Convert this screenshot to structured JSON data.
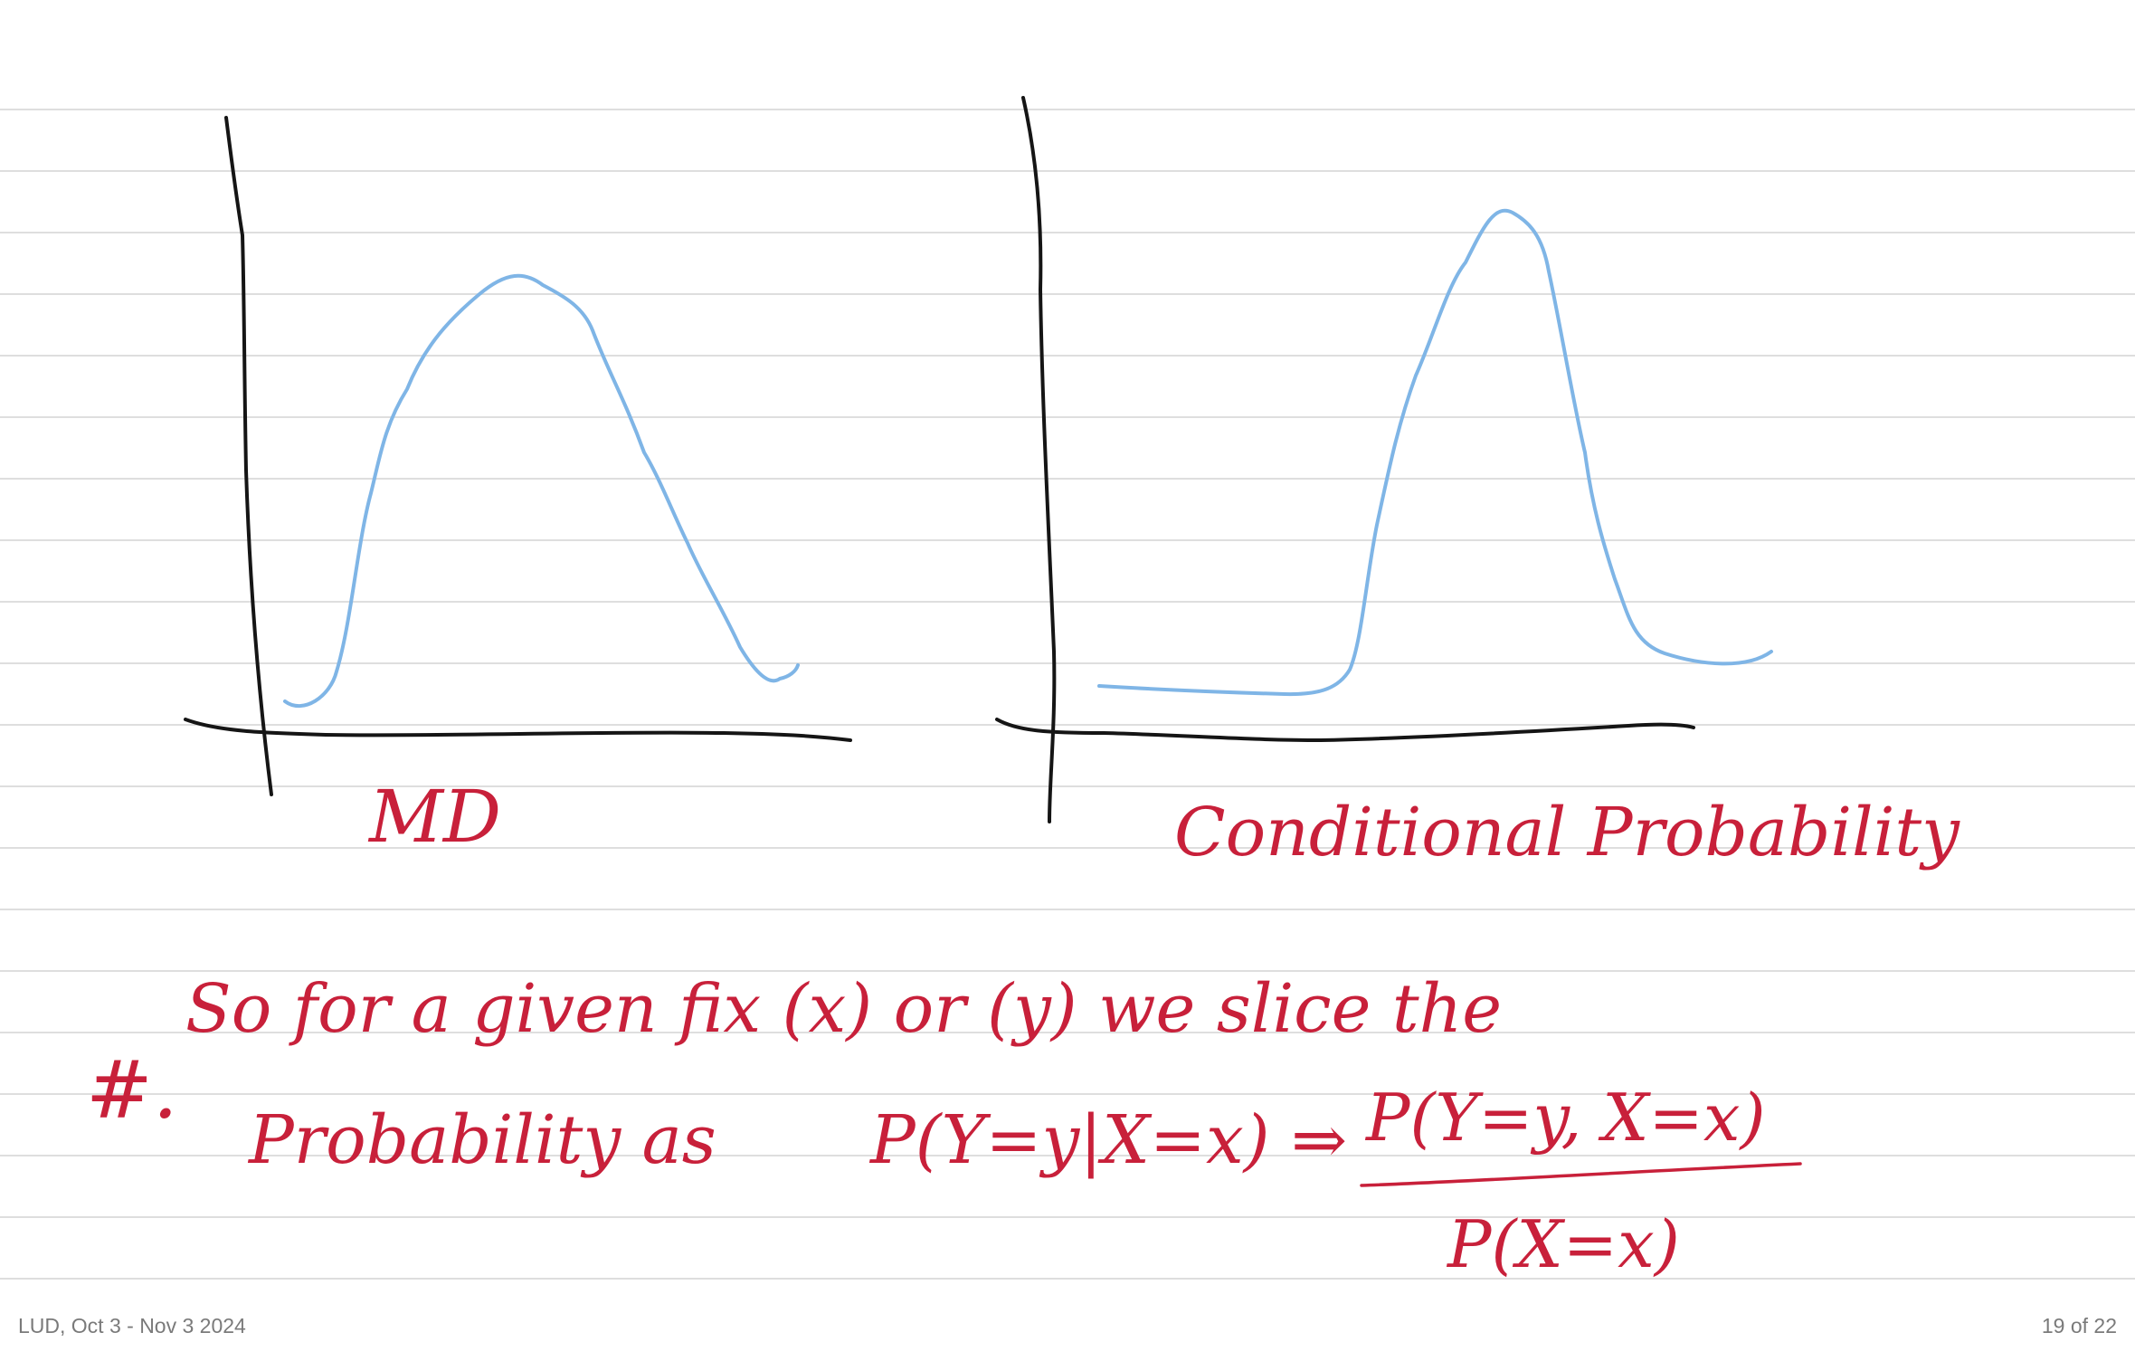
{
  "notes": {
    "label_left": "MD",
    "label_right": "Conditional Probability",
    "line1_marker": "#.",
    "line1": "So for a given fix (x) or (y) we slice the",
    "line2_start": "Probability as",
    "line2_formula": "P(Y=y|X=x) ⇒",
    "fraction_numerator": "P(Y=y, X=x)",
    "fraction_denominator": "P(X=x)"
  },
  "footer": {
    "notebook_title": "LUD, Oct 3 - Nov 3 2024",
    "page_indicator": "19 of 22"
  },
  "colors": {
    "ink_red": "#c8203a",
    "curve_blue": "#7fb5e6",
    "axis_black": "#151515",
    "rule_gray": "#dedede"
  }
}
